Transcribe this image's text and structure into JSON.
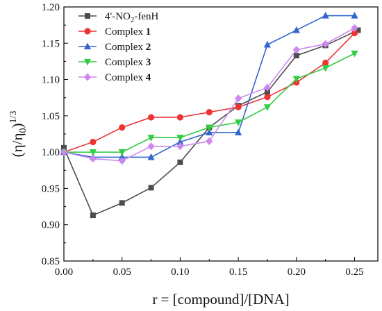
{
  "chart_data": {
    "type": "line",
    "title": "",
    "xlabel": "r = [compound]/[DNA]",
    "ylabel_main": "(η/η",
    "ylabel_sub": "0",
    "ylabel_close": ")",
    "ylabel_sup": "1/3",
    "xlim": [
      0.0,
      0.27
    ],
    "ylim": [
      0.85,
      1.2
    ],
    "x_ticks": [
      "0.00",
      "0.05",
      "0.10",
      "0.15",
      "0.20",
      "0.25"
    ],
    "y_ticks": [
      "0.85",
      "0.90",
      "0.95",
      "1.00",
      "1.05",
      "1.10",
      "1.15",
      "1.20"
    ],
    "grid": false,
    "legend_position": "top-left",
    "x": [
      0.0,
      0.025,
      0.05,
      0.075,
      0.1,
      0.125,
      0.15,
      0.175,
      0.2,
      0.225,
      0.25
    ],
    "series": [
      {
        "legend_parts": [
          {
            "text": "4'-NO",
            "style": "normal"
          },
          {
            "text": "2",
            "style": "sub"
          },
          {
            "text": "-fenH",
            "style": "normal"
          }
        ],
        "color": "#4d4d4d",
        "marker": "square",
        "x": [
          0.0,
          0.025,
          0.05,
          0.075,
          0.1,
          0.125,
          0.15,
          0.175,
          0.2,
          0.225,
          0.253
        ],
        "values": [
          1.006,
          0.913,
          0.93,
          0.951,
          0.986,
          1.034,
          1.064,
          1.083,
          1.133,
          1.147,
          1.168
        ]
      },
      {
        "legend_parts": [
          {
            "text": "Complex ",
            "style": "normal"
          },
          {
            "text": "1",
            "style": "bold"
          }
        ],
        "color": "#ee3333",
        "marker": "circle",
        "values": [
          1.0,
          1.014,
          1.034,
          1.048,
          1.048,
          1.055,
          1.062,
          1.076,
          1.096,
          1.123,
          1.164
        ]
      },
      {
        "legend_parts": [
          {
            "text": "Complex ",
            "style": "normal"
          },
          {
            "text": "2",
            "style": "bold"
          }
        ],
        "color": "#3366cc",
        "marker": "triangle-up",
        "values": [
          1.0,
          0.993,
          0.993,
          0.993,
          1.014,
          1.027,
          1.027,
          1.148,
          1.168,
          1.188,
          1.188
        ]
      },
      {
        "legend_parts": [
          {
            "text": "Complex ",
            "style": "normal"
          },
          {
            "text": "3",
            "style": "bold"
          }
        ],
        "color": "#33cc44",
        "marker": "triangle-down",
        "values": [
          1.0,
          1.0,
          1.0,
          1.02,
          1.02,
          1.034,
          1.041,
          1.062,
          1.101,
          1.116,
          1.136
        ]
      },
      {
        "legend_parts": [
          {
            "text": "Complex ",
            "style": "normal"
          },
          {
            "text": "4",
            "style": "bold"
          }
        ],
        "color": "#cc88ee",
        "marker": "diamond",
        "values": [
          1.0,
          0.991,
          0.988,
          1.008,
          1.008,
          1.015,
          1.074,
          1.089,
          1.141,
          1.149,
          1.171
        ]
      }
    ]
  }
}
